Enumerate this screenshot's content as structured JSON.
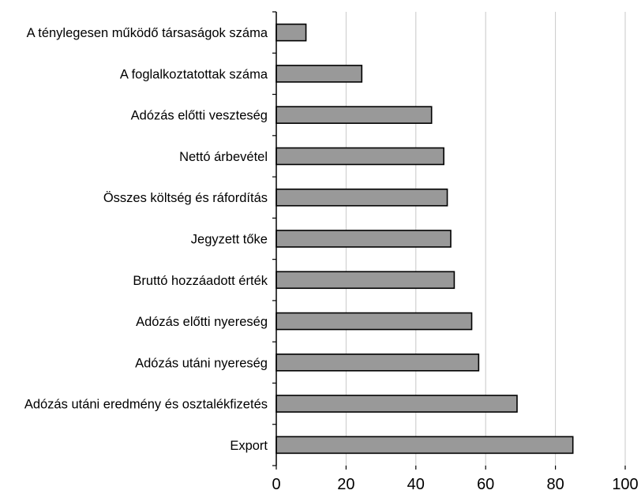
{
  "chart_data": {
    "type": "bar",
    "orientation": "horizontal",
    "title": "",
    "xlabel": "",
    "ylabel": "",
    "xlim": [
      0,
      100
    ],
    "x_ticks": [
      0,
      20,
      40,
      60,
      80,
      100
    ],
    "x_tick_labels": [
      "0",
      "20",
      "40",
      "60",
      "80",
      "100"
    ],
    "grid": "vertical gridlines",
    "legend": "none",
    "bar_color": "#999999",
    "bar_stroke": "#000000",
    "categories": [
      "A ténylegesen működő társaságok száma",
      "A foglalkoztatottak száma",
      "Adózás előtti veszteség",
      "Nettó árbevétel",
      "Összes költség és ráfordítás",
      "Jegyzett tőke",
      "Bruttó hozzáadott érték",
      "Adózás előtti nyereség",
      "Adózás utáni nyereség",
      "Adózás utáni eredmény és osztalékfizetés",
      "Export"
    ],
    "values": [
      8.5,
      24.5,
      44.5,
      48,
      49,
      50,
      51,
      56,
      58,
      69,
      85
    ]
  }
}
